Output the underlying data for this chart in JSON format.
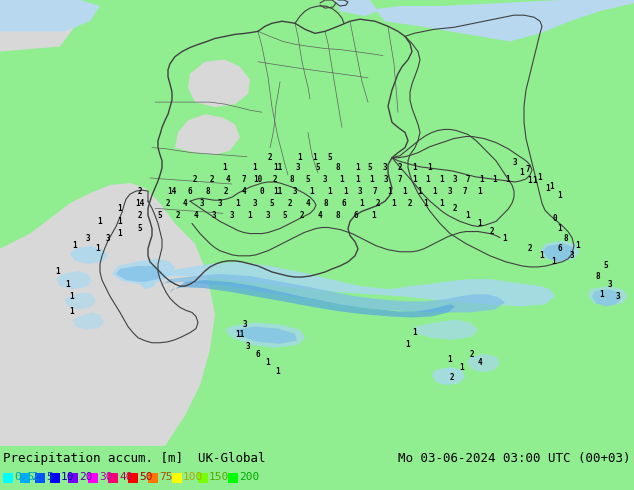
{
  "title_left": "Precipitation accum. [m]  UK-Global",
  "title_right": "Mo 03-06-2024 03:00 UTC (00+03)",
  "legend_values": [
    "0.5",
    "2",
    "5",
    "10",
    "20",
    "30",
    "40",
    "50",
    "75",
    "100",
    "150",
    "200"
  ],
  "legend_box_colors": [
    "#00ffff",
    "#00aaff",
    "#0055ff",
    "#0000ff",
    "#7700ff",
    "#ff00ff",
    "#ff0077",
    "#ff0000",
    "#ff7700",
    "#ffff00",
    "#77ff00",
    "#00ff00"
  ],
  "legend_text_colors": [
    "#00aaaa",
    "#0088cc",
    "#0044aa",
    "#0000aa",
    "#5500aa",
    "#aa00aa",
    "#aa0055",
    "#aa0000",
    "#aa5500",
    "#aaaa00",
    "#55aa00",
    "#00aa00"
  ],
  "land_color_green": "#90ee90",
  "land_color_gray": "#d8d8d8",
  "sea_color": "#b8d8f0",
  "border_color": "#404040",
  "state_border_color": "#606060",
  "precip_light": "#a0d8f0",
  "precip_mid": "#60b0e8",
  "precip_dark": "#2060c0",
  "text_color": "#000000",
  "font_size_title": 9,
  "font_size_legend": 9,
  "figsize": [
    6.34,
    4.9
  ],
  "dpi": 100
}
